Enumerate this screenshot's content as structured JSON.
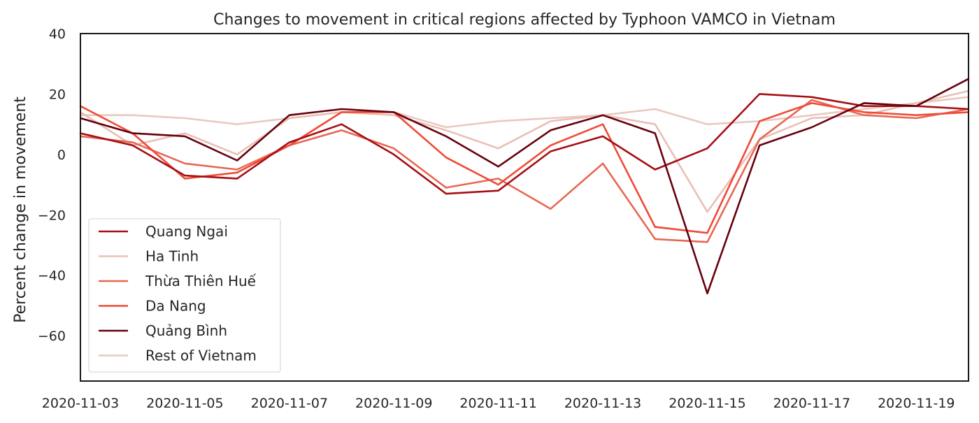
{
  "chart_data": {
    "type": "line",
    "title": "Changes to movement in critical regions affected by Typhoon VAMCO in Vietnam",
    "xlabel": "",
    "ylabel": "Percent change in movement",
    "ylim": [
      -75,
      40
    ],
    "yticks": [
      40,
      20,
      0,
      -20,
      -40,
      -60
    ],
    "ytick_labels": [
      "40",
      "20",
      "0",
      "−20",
      "−40",
      "−60"
    ],
    "x": [
      "2020-11-03",
      "2020-11-04",
      "2020-11-05",
      "2020-11-06",
      "2020-11-07",
      "2020-11-08",
      "2020-11-09",
      "2020-11-10",
      "2020-11-11",
      "2020-11-12",
      "2020-11-13",
      "2020-11-14",
      "2020-11-15",
      "2020-11-16",
      "2020-11-17",
      "2020-11-18",
      "2020-11-19",
      "2020-11-20"
    ],
    "xtick_labels": [
      "2020-11-03",
      "2020-11-05",
      "2020-11-07",
      "2020-11-09",
      "2020-11-11",
      "2020-11-13",
      "2020-11-15",
      "2020-11-17",
      "2020-11-19"
    ],
    "grid": false,
    "legend_position": "lower-left",
    "series": [
      {
        "name": "Quang Ngai",
        "color": "#a50f15",
        "values": [
          7,
          3,
          -7,
          -8,
          4,
          10,
          0,
          -13,
          -12,
          1,
          6,
          -5,
          2,
          20,
          19,
          16,
          16,
          15
        ]
      },
      {
        "name": "Ha Tinh",
        "color": "#e8c0b5",
        "values": [
          14,
          3,
          7,
          0,
          12,
          14,
          13,
          8,
          2,
          11,
          13,
          10,
          -19,
          5,
          12,
          13,
          17,
          21
        ]
      },
      {
        "name": "Thừa Thiên Huế",
        "color": "#e86752",
        "values": [
          6,
          4,
          -3,
          -5,
          3,
          8,
          2,
          -11,
          -8,
          -18,
          -3,
          -28,
          -29,
          5,
          18,
          13,
          12,
          15
        ]
      },
      {
        "name": "Da Nang",
        "color": "#ef4a37",
        "values": [
          16,
          7,
          -8,
          -6,
          3,
          14,
          14,
          -1,
          -10,
          3,
          10,
          -24,
          -26,
          11,
          17,
          14,
          13,
          14
        ]
      },
      {
        "name": "Quảng Bình",
        "color": "#67000d",
        "values": [
          12,
          7,
          6,
          -2,
          13,
          15,
          14,
          6,
          -4,
          8,
          13,
          7,
          -46,
          3,
          9,
          17,
          16,
          25
        ]
      },
      {
        "name": "Rest of Vietnam",
        "color": "#e9c9c0",
        "values": [
          13,
          13,
          12,
          10,
          12,
          14,
          14,
          9,
          11,
          12,
          13,
          15,
          10,
          11,
          13,
          15,
          17,
          19
        ]
      }
    ]
  }
}
